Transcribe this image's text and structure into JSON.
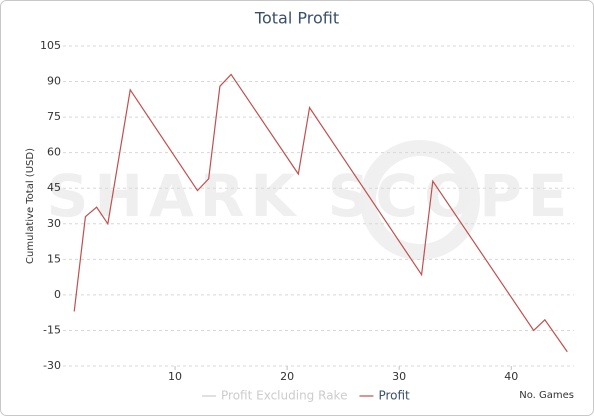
{
  "chart_data": {
    "type": "line",
    "title": "Total Profit",
    "watermark": "SHARK SCOPE",
    "y_label": "Cumulative Total (USD)",
    "x_label": "No. Games",
    "x": [
      1,
      2,
      3,
      4,
      6,
      12,
      13,
      14,
      15,
      21,
      22,
      32,
      33,
      42,
      43,
      45
    ],
    "series": [
      {
        "name": "Profit Excluding Rake",
        "color": "#cccccc",
        "visible": false,
        "values": [
          null,
          null,
          null,
          null,
          null,
          null,
          null,
          null,
          null,
          null,
          null,
          null,
          null,
          null,
          null,
          null
        ]
      },
      {
        "name": "Profit",
        "color": "#c0504d",
        "visible": true,
        "values": [
          -7,
          33,
          37,
          30,
          86.5,
          44,
          49,
          88,
          93,
          51,
          79,
          8.5,
          48,
          -15,
          -10.5,
          -24
        ]
      }
    ],
    "xlim": [
      0,
      45.6
    ],
    "xticks": [
      10,
      20,
      30,
      40
    ],
    "ylim": [
      -30,
      105
    ],
    "yticks": [
      -30,
      -15,
      0,
      15,
      30,
      45,
      60,
      75,
      90,
      105
    ],
    "grid": true
  }
}
